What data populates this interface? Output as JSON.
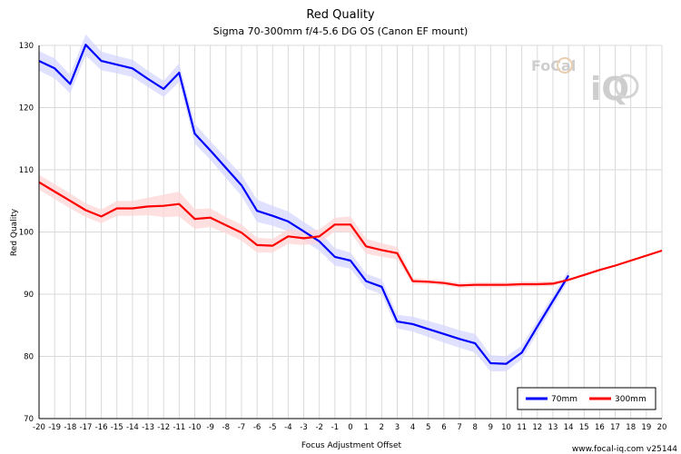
{
  "chart_data": {
    "type": "line",
    "title": "Red Quality",
    "subtitle": "Sigma 70-300mm f/4-5.6 DG OS (Canon EF mount)",
    "xlabel": "Focus Adjustment Offset",
    "ylabel": "Red Quality",
    "xlim": [
      -20,
      20
    ],
    "ylim": [
      70,
      130
    ],
    "xticks": [
      -20,
      -19,
      -18,
      -17,
      -16,
      -15,
      -14,
      -13,
      -12,
      -11,
      -10,
      -9,
      -8,
      -7,
      -6,
      -5,
      -4,
      -3,
      -2,
      -1,
      0,
      1,
      2,
      3,
      4,
      5,
      6,
      7,
      8,
      9,
      10,
      11,
      12,
      13,
      14,
      15,
      16,
      17,
      18,
      19,
      20
    ],
    "yticks": [
      70,
      80,
      90,
      100,
      110,
      120,
      130
    ],
    "grid": true,
    "legend_position": "bottom-right",
    "series": [
      {
        "name": "70mm",
        "color": "#0000ff",
        "band_color": "#d6d6ff",
        "x": [
          -20,
          -19,
          -18,
          -17,
          -16,
          -15,
          -14,
          -13,
          -12,
          -11,
          -10,
          -9,
          -8,
          -7,
          -6,
          -5,
          -4,
          -3,
          -2,
          -1,
          0,
          1,
          2,
          3,
          4,
          5,
          6,
          7,
          8,
          9,
          10,
          11,
          12,
          13,
          14
        ],
        "y": [
          127.5,
          126.3,
          123.8,
          130.1,
          127.5,
          126.9,
          126.3,
          124.6,
          123.0,
          125.6,
          115.8,
          113.1,
          110.3,
          107.5,
          103.4,
          102.6,
          101.7,
          100.1,
          98.5,
          96.0,
          95.4,
          92.1,
          91.2,
          85.6,
          85.2,
          84.4,
          83.6,
          82.8,
          82.1,
          78.9,
          78.8,
          80.6,
          84.8,
          88.9,
          93.0
        ],
        "band": [
          1.6,
          1.6,
          1.5,
          1.7,
          1.5,
          1.4,
          1.4,
          1.3,
          1.3,
          1.5,
          1.6,
          1.5,
          1.6,
          1.7,
          1.8,
          1.6,
          1.6,
          1.5,
          1.5,
          1.4,
          1.3,
          1.2,
          1.2,
          1.1,
          1.2,
          1.3,
          1.4,
          1.4,
          1.5,
          1.3,
          1.2,
          1.1,
          1.0,
          0.9,
          0.8
        ]
      },
      {
        "name": "300mm",
        "color": "#ff0000",
        "band_color": "#ffd6d6",
        "x": [
          -20,
          -19,
          -18,
          -17,
          -16,
          -15,
          -14,
          -13,
          -12,
          -11,
          -10,
          -9,
          -8,
          -7,
          -6,
          -5,
          -4,
          -3,
          -2,
          -1,
          0,
          1,
          2,
          3,
          4,
          5,
          6,
          7,
          8,
          9,
          10,
          11,
          12,
          13,
          14,
          15,
          16,
          17,
          18,
          19,
          20
        ],
        "y": [
          108.0,
          106.5,
          105.0,
          103.5,
          102.5,
          103.8,
          103.8,
          104.1,
          104.2,
          104.5,
          102.1,
          102.3,
          101.1,
          99.9,
          97.9,
          97.8,
          99.3,
          99.0,
          99.3,
          101.2,
          101.2,
          97.7,
          97.1,
          96.6,
          92.1,
          92.0,
          91.8,
          91.4,
          91.5,
          91.5,
          91.5,
          91.6,
          91.6,
          91.7,
          92.3,
          93.1,
          93.9,
          94.6,
          95.4,
          96.2,
          97.0
        ],
        "band": [
          1.2,
          1.2,
          1.2,
          1.1,
          1.1,
          1.2,
          1.2,
          1.4,
          1.8,
          2.0,
          1.6,
          1.5,
          1.3,
          1.3,
          1.2,
          1.1,
          1.2,
          1.1,
          1.1,
          1.1,
          1.3,
          1.2,
          1.1,
          1.0,
          0.5,
          0.4,
          0.4,
          0.4,
          0.4,
          0.4,
          0.4,
          0.4,
          0.4,
          0.4,
          0,
          0,
          0,
          0,
          0,
          0,
          0
        ]
      }
    ]
  },
  "watermark": {
    "brand_top": "FoCal",
    "brand_bottom": "iQ"
  },
  "footer": "www.focal-iq.com  v25144"
}
